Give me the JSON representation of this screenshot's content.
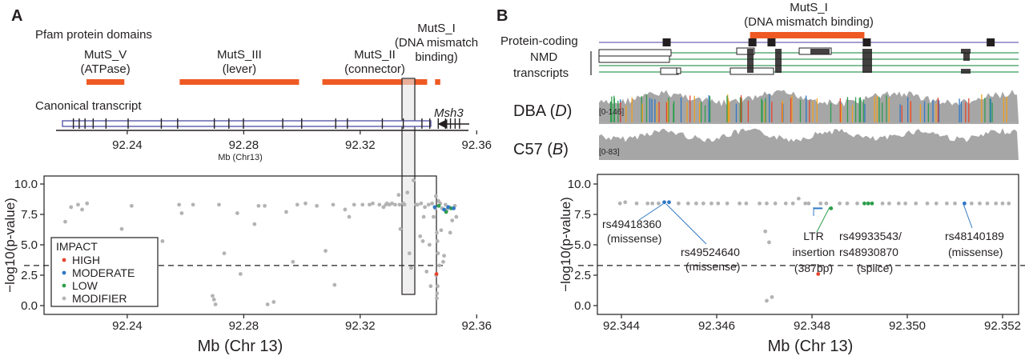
{
  "panel_a": {
    "letter": "A",
    "pfam_heading": "Pfam protein domains",
    "domains": [
      {
        "name": "MutS_V",
        "desc": "(ATPase)",
        "start": 92.226,
        "end": 92.239
      },
      {
        "name": "MutS_III",
        "desc": "(lever)",
        "start": 92.258,
        "end": 92.299
      },
      {
        "name": "MutS_II",
        "desc": "(connector)",
        "start": 92.307,
        "end": 92.343
      },
      {
        "name": "MutS_I",
        "desc": "(DNA mismatch",
        "desc2": "binding)",
        "start": 92.3457,
        "end": 92.3475
      }
    ],
    "transcript_label": "Canonical transcript",
    "gene_label": "Msh3",
    "exon_positions": [
      92.2215,
      92.2235,
      92.2255,
      92.2283,
      92.2327,
      92.2403,
      92.2517,
      92.2573,
      92.2699,
      92.2749,
      92.2799,
      92.2934,
      92.2999,
      92.3116,
      92.3156,
      92.3276,
      92.3348,
      92.3412,
      92.3439,
      92.3468,
      92.3493,
      92.351,
      92.3526,
      92.3541
    ],
    "gene_axis": {
      "ticks": [
        "92.24",
        "92.28",
        "92.32",
        "92.36"
      ],
      "tick_values": [
        92.24,
        92.28,
        92.32,
        92.36
      ],
      "label": "Mb (Chr13)"
    },
    "highlight_range": [
      92.3455,
      92.3478
    ],
    "legend": {
      "title": "IMPACT",
      "items": [
        {
          "label": "HIGH",
          "color": "#e6452e"
        },
        {
          "label": "MODERATE",
          "color": "#2f78c4"
        },
        {
          "label": "LOW",
          "color": "#2e9e4d"
        },
        {
          "label": "MODIFIER",
          "color": "#b3b3b3"
        }
      ]
    }
  },
  "panel_b": {
    "letter": "B",
    "domain_name": "MutS_I",
    "domain_desc": "(DNA mismatch binding)",
    "domain_range": [
      92.3467,
      92.3491
    ],
    "track_labels": {
      "protein_coding": "Protein-coding",
      "nmd1": "NMD",
      "nmd2": "transcripts"
    },
    "dba_label": "DBA",
    "dba_italic": "D",
    "dba_range": "[0-146]",
    "c57_label": "C57",
    "c57_italic": "B",
    "c57_range": "[0-83]",
    "exons": [
      92.34495,
      92.34675,
      92.34715,
      92.34915,
      92.35175
    ],
    "variant_annotations": [
      {
        "id": "rs49418360",
        "note": "(missense)"
      },
      {
        "id": "rs49524640",
        "note": "(missense)"
      },
      {
        "id": "LTR",
        "note": "insertion",
        "note2": "(387bp)"
      },
      {
        "id": "rs49933543/",
        "note": "rs48930870",
        "note2": "(splice)"
      },
      {
        "id": "rs48140189",
        "note": "(missense)"
      }
    ],
    "ltr_range": [
      92.34803,
      92.34822
    ]
  },
  "chart_data": [
    {
      "type": "scatter",
      "panel": "A",
      "xlabel": "Mb (Chr 13)",
      "ylabel": "−log10(p-value)",
      "xlim": [
        92.215,
        92.358
      ],
      "ylim": [
        -0.8,
        11.2
      ],
      "xticks": [
        "92.24",
        "92.28",
        "92.32",
        "92.36"
      ],
      "xtick_values": [
        92.24,
        92.28,
        92.32,
        92.36
      ],
      "yticks": [
        "0.0",
        "2.5",
        "5.0",
        "7.5",
        "10.0"
      ],
      "ytick_values": [
        0,
        2.5,
        5.0,
        7.5,
        10.0
      ],
      "threshold": 3.3,
      "series": [
        {
          "name": "HIGH",
          "color": "#e6452e",
          "x": [
            92.3462
          ],
          "y": [
            2.6
          ]
        },
        {
          "name": "MODERATE",
          "color": "#2f78c4",
          "x": [
            92.3456,
            92.3488,
            92.3502,
            92.3521
          ],
          "y": [
            8.1,
            7.9,
            8.1,
            8.0
          ]
        },
        {
          "name": "LOW",
          "color": "#2e9e4d",
          "x": [
            92.347,
            92.3495,
            92.3512
          ],
          "y": [
            8.2,
            7.7,
            8.0
          ]
        },
        {
          "name": "MODIFIER",
          "color": "#b3b3b3",
          "x": [
            92.2187,
            92.2207,
            92.2231,
            92.2245,
            92.2262,
            92.2298,
            92.2381,
            92.2415,
            92.2452,
            92.2521,
            92.2578,
            92.2587,
            92.2626,
            92.2693,
            92.2698,
            92.2703,
            92.2715,
            92.2733,
            92.2778,
            92.2789,
            92.2837,
            92.2851,
            92.2872,
            92.2882,
            92.2903,
            92.2946,
            92.2969,
            92.2984,
            92.3012,
            92.3051,
            92.3081,
            92.3107,
            92.3112,
            92.3148,
            92.3162,
            92.3179,
            92.3208,
            92.3232,
            92.3243,
            92.3266,
            92.328,
            92.3288,
            92.3292,
            92.33,
            92.3309,
            92.332,
            92.3332,
            92.3335,
            92.3338,
            92.3348,
            92.3352,
            92.3362,
            92.3369,
            92.3375,
            92.3383,
            92.3392,
            92.3397,
            92.3406,
            92.3409,
            92.3415,
            92.3418,
            92.3422,
            92.3428,
            92.3435,
            92.3438,
            92.3442,
            92.3447,
            92.3452,
            92.3458,
            92.346,
            92.3463,
            92.3465,
            92.3467,
            92.3469,
            92.3472,
            92.3475,
            92.3478,
            92.3481,
            92.3485,
            92.3488,
            92.3493,
            92.3498,
            92.3505,
            92.3509,
            92.3516,
            92.3525,
            92.353,
            92.3461,
            92.3463,
            92.3466,
            92.3464
          ],
          "y": [
            6.9,
            8.1,
            8.3,
            7.9,
            8.4,
            5.4,
            6.3,
            8.2,
            4.3,
            5.3,
            8.3,
            7.6,
            8.3,
            0.8,
            0.5,
            0.1,
            8.3,
            4.3,
            7.6,
            2.6,
            6.7,
            8.2,
            8.2,
            0.1,
            0.3,
            7.7,
            3.6,
            8.3,
            8.4,
            8.2,
            4.5,
            8.3,
            1.7,
            7.9,
            7.3,
            8.3,
            8.3,
            8.3,
            8.4,
            8.3,
            8.1,
            8.3,
            8.4,
            8.3,
            8.4,
            8.3,
            9.1,
            8.3,
            6.3,
            8.4,
            8.3,
            9.3,
            4.3,
            3.1,
            10.3,
            8.3,
            8.3,
            5.7,
            8.4,
            5.3,
            7.3,
            8.1,
            2.8,
            8.3,
            5.0,
            1.6,
            8.4,
            7.3,
            8.0,
            9.0,
            6.0,
            5.3,
            4.3,
            8.6,
            3.3,
            8.4,
            6.2,
            8.0,
            3.6,
            4.1,
            8.3,
            7.9,
            8.1,
            6.0,
            7.0,
            8.2,
            7.3,
            2.5,
            0.6,
            1.6,
            1.0
          ]
        }
      ]
    },
    {
      "type": "scatter",
      "panel": "B",
      "xlabel": "Mb (Chr 13)",
      "ylabel": "−log10(p-value)",
      "xlim": [
        92.3438,
        92.3522
      ],
      "ylim": [
        -0.8,
        11.0
      ],
      "xticks": [
        "92.344",
        "92.346",
        "92.348",
        "92.350",
        "92.352"
      ],
      "xtick_values": [
        92.344,
        92.346,
        92.348,
        92.35,
        92.352
      ],
      "yticks": [
        "0.0",
        "2.5",
        "5.0",
        "7.5",
        "10.0"
      ],
      "ytick_values": [
        0,
        2.5,
        5.0,
        7.5,
        10.0
      ],
      "threshold": 3.3,
      "series": [
        {
          "name": "HIGH",
          "color": "#e6452e",
          "x": [
            92.34813
          ],
          "y": [
            2.6
          ]
        },
        {
          "name": "MODERATE",
          "color": "#2f78c4",
          "x": [
            92.3449,
            92.345,
            92.3512
          ],
          "y": [
            8.5,
            8.5,
            8.4
          ]
        },
        {
          "name": "LOW",
          "color": "#2e9e4d",
          "x": [
            92.3484,
            92.3491,
            92.34918,
            92.34926
          ],
          "y": [
            8.0,
            8.4,
            8.4,
            8.4
          ]
        },
        {
          "name": "MODIFIER",
          "color": "#b3b3b3",
          "x": [
            92.34397,
            92.34408,
            92.34432,
            92.34455,
            92.34465,
            92.34478,
            92.3452,
            92.3454,
            92.34557,
            92.34572,
            92.34589,
            92.34603,
            92.34622,
            92.34648,
            92.34662,
            92.3469,
            92.34705,
            92.34723,
            92.34702,
            92.3471,
            92.34716,
            92.34705,
            92.34745,
            92.3476,
            92.34772,
            92.34786,
            92.34793,
            92.34818,
            92.3483,
            92.34858,
            92.34874,
            92.34895,
            92.34948,
            92.34962,
            92.34982,
            92.34996,
            92.35018,
            92.35042,
            92.35061,
            92.35083,
            92.351,
            92.35135,
            92.35152,
            92.35168,
            92.35186,
            92.352,
            92.35213
          ],
          "y": [
            8.4,
            8.5,
            8.4,
            8.4,
            8.4,
            8.4,
            8.4,
            8.4,
            8.4,
            8.4,
            8.4,
            8.4,
            8.4,
            8.4,
            8.4,
            8.4,
            8.4,
            8.4,
            6.1,
            5.2,
            0.7,
            0.4,
            8.4,
            8.4,
            8.8,
            8.4,
            8.4,
            8.4,
            8.4,
            8.4,
            8.4,
            8.4,
            8.4,
            8.4,
            8.4,
            8.4,
            8.4,
            8.4,
            8.4,
            8.4,
            8.4,
            8.4,
            8.4,
            8.4,
            8.4,
            8.4,
            8.4
          ]
        }
      ]
    }
  ]
}
